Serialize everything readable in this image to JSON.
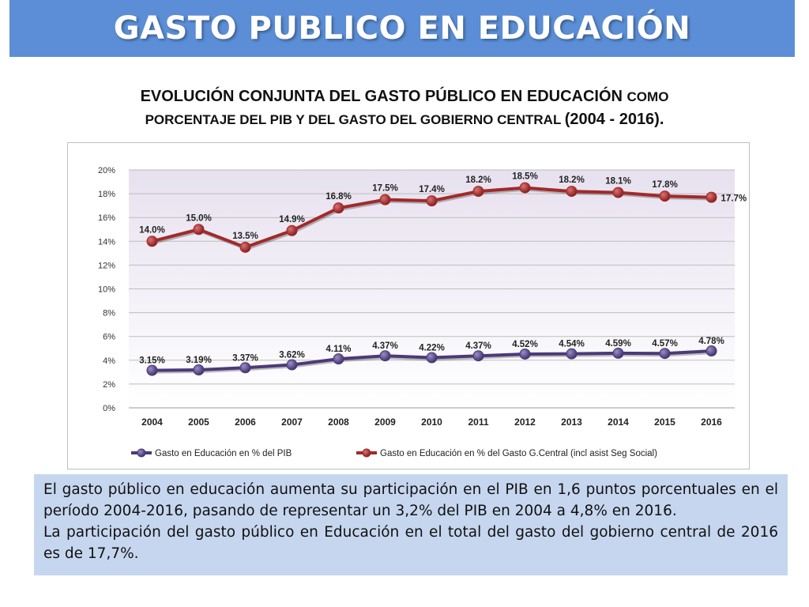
{
  "header": {
    "title": "GASTO PUBLICO EN EDUCACIÓN"
  },
  "subtitle": {
    "part1": "EVOLUCIÓN CONJUNTA DEL GASTO PÚBLICO EN EDUCACIÓN ",
    "part2": "COMO",
    "part3": "PORCENTAJE DEL PIB Y DEL GASTO DEL GOBIERNO CENTRAL ",
    "part4": "(2004 - 2016)."
  },
  "chart_data": {
    "type": "line",
    "categories": [
      "2004",
      "2005",
      "2006",
      "2007",
      "2008",
      "2009",
      "2010",
      "2011",
      "2012",
      "2013",
      "2014",
      "2015",
      "2016"
    ],
    "ylim": [
      0,
      20
    ],
    "y_ticks": [
      "0%",
      "2%",
      "4%",
      "6%",
      "8%",
      "10%",
      "12%",
      "14%",
      "16%",
      "18%",
      "20%"
    ],
    "grid": true,
    "legend_position": "bottom",
    "series": [
      {
        "name": "Gasto en Educación en % del PIB",
        "color": "#4b3a78",
        "values": [
          3.15,
          3.19,
          3.37,
          3.62,
          4.11,
          4.37,
          4.22,
          4.37,
          4.52,
          4.54,
          4.59,
          4.57,
          4.78
        ],
        "labels": [
          "3.15%",
          "3.19%",
          "3.37%",
          "3.62%",
          "4.11%",
          "4.37%",
          "4.22%",
          "4.37%",
          "4.52%",
          "4.54%",
          "4.59%",
          "4.57%",
          "4.78%"
        ]
      },
      {
        "name": "Gasto en Educación en % del Gasto G.Central (incl asist Seg Social)",
        "color": "#a12a2a",
        "values": [
          14.0,
          15.0,
          13.5,
          14.9,
          16.8,
          17.5,
          17.4,
          18.2,
          18.5,
          18.2,
          18.1,
          17.8,
          17.7
        ],
        "labels": [
          "14.0%",
          "15.0%",
          "13.5%",
          "14.9%",
          "16.8%",
          "17.5%",
          "17.4%",
          "18.2%",
          "18.5%",
          "18.2%",
          "18.1%",
          "17.8%",
          "17.7%"
        ]
      }
    ]
  },
  "summary": {
    "paragraph1": "El gasto público en educación aumenta su participación en el PIB en 1,6 puntos porcentuales en el período 2004-2016, pasando de representar un 3,2% del PIB en 2004 a 4,8% en 2016.",
    "paragraph2": "La participación del gasto público en Educación en el total del gasto del gobierno central de 2016 es de 17,7%."
  }
}
